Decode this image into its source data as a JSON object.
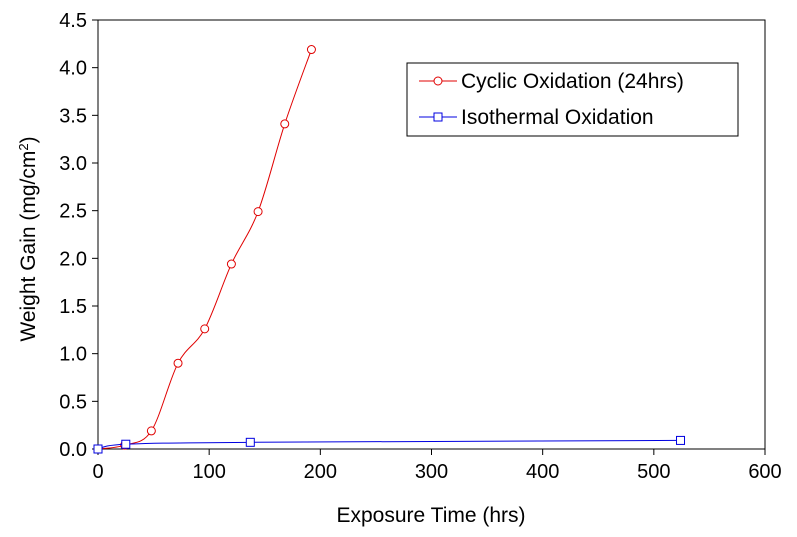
{
  "chart_data": {
    "type": "line",
    "xlabel": "Exposure Time (hrs)",
    "ylabel_main": "Weight Gain (mg/cm",
    "ylabel_sup": "2",
    "ylabel_close": ")",
    "xlim": [
      0,
      600
    ],
    "ylim": [
      0,
      4.5
    ],
    "xticks": [
      0,
      100,
      200,
      300,
      400,
      500,
      600
    ],
    "yticks": [
      "0.0",
      "0.5",
      "1.0",
      "1.5",
      "2.0",
      "2.5",
      "3.0",
      "3.5",
      "4.0",
      "4.5"
    ],
    "grid": false,
    "legend_position": "top-right",
    "series": [
      {
        "name": "Cyclic Oxidation (24hrs)",
        "color": "#e00000",
        "marker": "circle",
        "x": [
          0,
          24,
          48,
          72,
          96,
          120,
          144,
          168,
          192
        ],
        "y": [
          0.0,
          0.04,
          0.19,
          0.9,
          1.26,
          1.94,
          2.49,
          3.41,
          4.19
        ]
      },
      {
        "name": "Isothermal Oxidation",
        "color": "#0000e0",
        "marker": "square",
        "x": [
          0,
          25,
          137,
          524
        ],
        "y": [
          0.0,
          0.05,
          0.07,
          0.09
        ]
      }
    ]
  }
}
